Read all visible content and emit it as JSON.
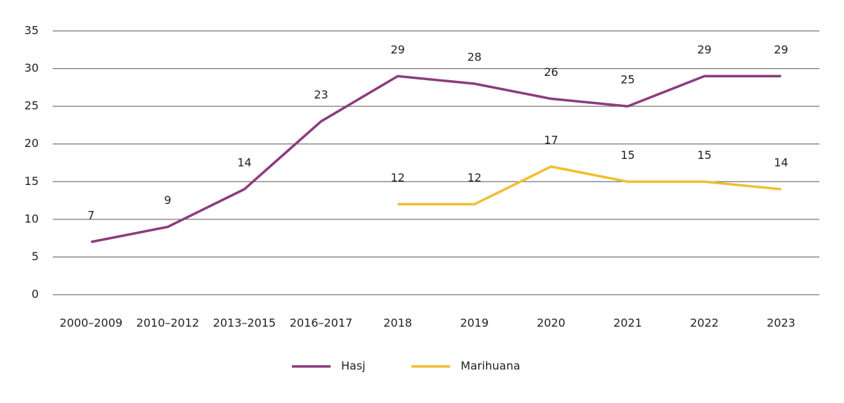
{
  "chart_data": {
    "type": "line",
    "categories": [
      "2000–2009",
      "2010–2012",
      "2013–2015",
      "2016–2017",
      "2018",
      "2019",
      "2020",
      "2021",
      "2022",
      "2023"
    ],
    "series": [
      {
        "name": "Hasj",
        "color": "#8b3c7d",
        "values": [
          7,
          9,
          14,
          23,
          29,
          28,
          26,
          25,
          29,
          29
        ]
      },
      {
        "name": "Marihuana",
        "color": "#f0bf2f",
        "values": [
          null,
          null,
          null,
          null,
          12,
          12,
          17,
          15,
          15,
          14
        ]
      }
    ],
    "ylim": [
      0,
      35
    ],
    "yticks": [
      0,
      5,
      10,
      15,
      20,
      25,
      30,
      35
    ],
    "grid": true,
    "legend": "bottom"
  }
}
